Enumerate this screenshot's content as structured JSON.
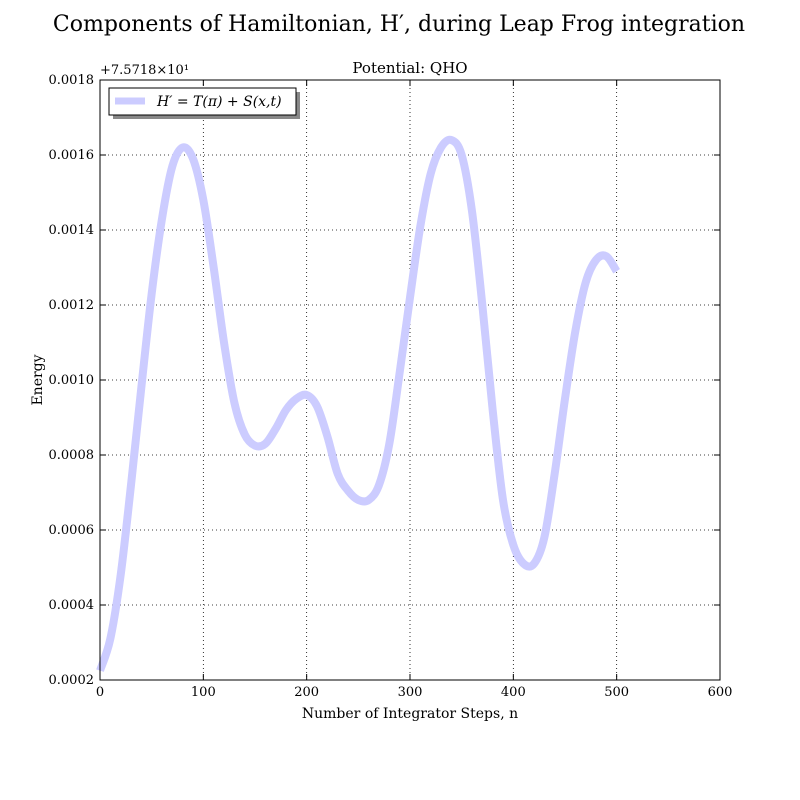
{
  "chart_data": {
    "type": "line",
    "suptitle": "Components of Hamiltonian, H′, during Leap Frog integration",
    "title": "Potential: QHO",
    "xlabel": "Number of Integrator Steps, n",
    "ylabel": "Energy",
    "y_offset_label": "+7.5718×10¹",
    "xlim": [
      0,
      600
    ],
    "ylim": [
      0.0002,
      0.0018
    ],
    "xticks": [
      "0",
      "100",
      "200",
      "300",
      "400",
      "500",
      "600"
    ],
    "yticks": [
      "0.0002",
      "0.0004",
      "0.0006",
      "0.0008",
      "0.0010",
      "0.0012",
      "0.0014",
      "0.0016",
      "0.0018"
    ],
    "grid": true,
    "legend_position": "top-left",
    "series": [
      {
        "name": "H′ = T(π) + S(x,t)",
        "color": "#ccccff",
        "x": [
          0,
          10,
          20,
          30,
          40,
          50,
          60,
          70,
          80,
          90,
          100,
          110,
          120,
          130,
          140,
          150,
          160,
          170,
          180,
          190,
          200,
          210,
          220,
          230,
          240,
          250,
          260,
          270,
          280,
          290,
          300,
          310,
          320,
          330,
          340,
          350,
          360,
          370,
          380,
          390,
          400,
          410,
          420,
          430,
          440,
          450,
          460,
          470,
          480,
          490,
          500
        ],
        "y": [
          0.000225,
          0.00031,
          0.00048,
          0.00072,
          0.00098,
          0.00123,
          0.00143,
          0.00157,
          0.00162,
          0.00159,
          0.00148,
          0.0013,
          0.0011,
          0.00094,
          0.000855,
          0.000825,
          0.00083,
          0.00087,
          0.00092,
          0.00095,
          0.00096,
          0.00093,
          0.00085,
          0.00075,
          0.000705,
          0.00068,
          0.00068,
          0.00072,
          0.00083,
          0.00102,
          0.00122,
          0.00141,
          0.00155,
          0.00162,
          0.00164,
          0.0016,
          0.00145,
          0.0012,
          0.00092,
          0.00068,
          0.00056,
          0.00051,
          0.00051,
          0.00058,
          0.00075,
          0.00095,
          0.00113,
          0.00126,
          0.00132,
          0.00133,
          0.00129
        ]
      }
    ]
  }
}
